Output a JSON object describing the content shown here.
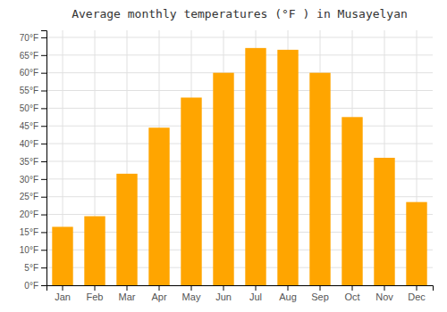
{
  "chart_data": {
    "type": "bar",
    "title": "Average monthly temperatures (°F ) in Musayelyan",
    "categories": [
      "Jan",
      "Feb",
      "Mar",
      "Apr",
      "May",
      "Jun",
      "Jul",
      "Aug",
      "Sep",
      "Oct",
      "Nov",
      "Dec"
    ],
    "values": [
      16.5,
      19.5,
      31.5,
      44.5,
      53.0,
      60.0,
      67.0,
      66.5,
      60.0,
      47.5,
      36.0,
      23.5
    ],
    "color": "#FFA500",
    "ylim": [
      0,
      72
    ],
    "yticks": [
      {
        "value": 0,
        "label": "0°F"
      },
      {
        "value": 5,
        "label": "5°F"
      },
      {
        "value": 10,
        "label": "10°F"
      },
      {
        "value": 15,
        "label": "15°F"
      },
      {
        "value": 20,
        "label": "20°F"
      },
      {
        "value": 25,
        "label": "25°F"
      },
      {
        "value": 30,
        "label": "30°F"
      },
      {
        "value": 35,
        "label": "35°F"
      },
      {
        "value": 40,
        "label": "40°F"
      },
      {
        "value": 45,
        "label": "45°F"
      },
      {
        "value": 50,
        "label": "50°F"
      },
      {
        "value": 55,
        "label": "55°F"
      },
      {
        "value": 60,
        "label": "60°F"
      },
      {
        "value": 65,
        "label": "65°F"
      },
      {
        "value": 70,
        "label": "70°F"
      }
    ],
    "grid": true
  }
}
